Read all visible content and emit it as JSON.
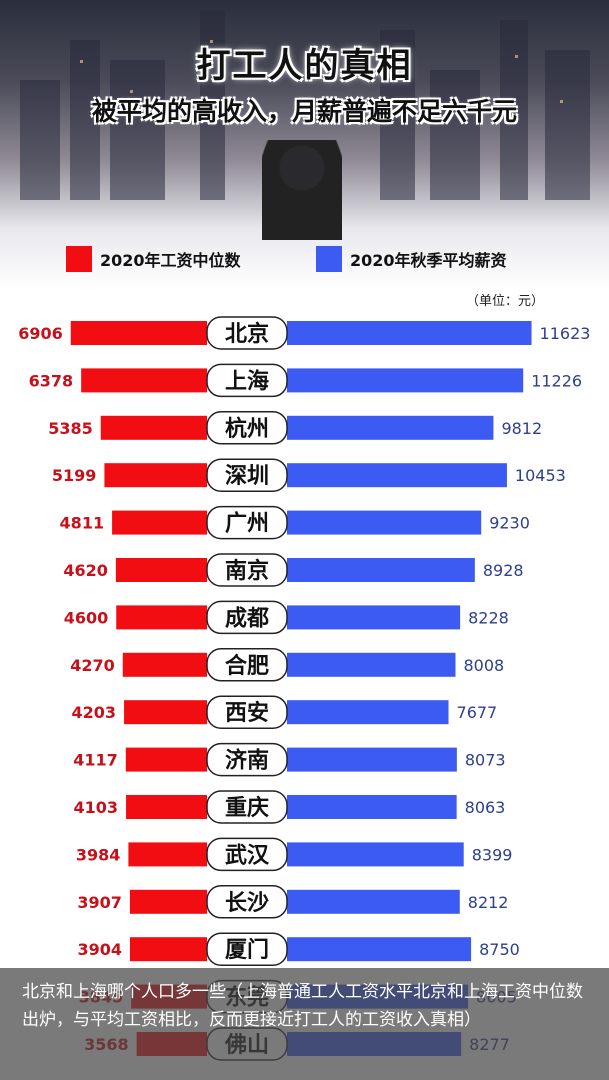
{
  "header": {
    "title": "打工人的真相",
    "subtitle": "被平均的高收入，月薪普遍不足六千元"
  },
  "legend": {
    "median_label": "2020年工资中位数",
    "average_label": "2020年秋季平均薪资",
    "unit": "（单位：元）"
  },
  "colors": {
    "median": "#f20d12",
    "average": "#3c5bf2",
    "median_text": "#c8101a",
    "average_text": "#2d3f8e"
  },
  "caption": {
    "text": "北京和上海哪个人口多一些（上海普通工人工资水平北京和上海工资中位数出炉，与平均工资相比，反而更接近打工人的工资收入真相）"
  },
  "chart_data": {
    "type": "bar",
    "title": "打工人的真相",
    "subtitle": "被平均的高收入，月薪普遍不足六千元",
    "unit": "元",
    "legend_position": "top",
    "categories": [
      "北京",
      "上海",
      "杭州",
      "深圳",
      "广州",
      "南京",
      "成都",
      "合肥",
      "西安",
      "济南",
      "重庆",
      "武汉",
      "长沙",
      "厦门",
      "东莞",
      "佛山"
    ],
    "series": [
      {
        "name": "2020年工资中位数",
        "values": [
          6906,
          6378,
          5385,
          5199,
          4811,
          4620,
          4600,
          4270,
          4203,
          4117,
          4103,
          3984,
          3907,
          3904,
          3845,
          3568
        ]
      },
      {
        "name": "2020年秋季平均薪资",
        "values": [
          11623,
          11226,
          9812,
          10453,
          9230,
          8928,
          8228,
          8008,
          7677,
          8073,
          8063,
          8399,
          8212,
          8750,
          8605,
          8277
        ]
      }
    ]
  }
}
